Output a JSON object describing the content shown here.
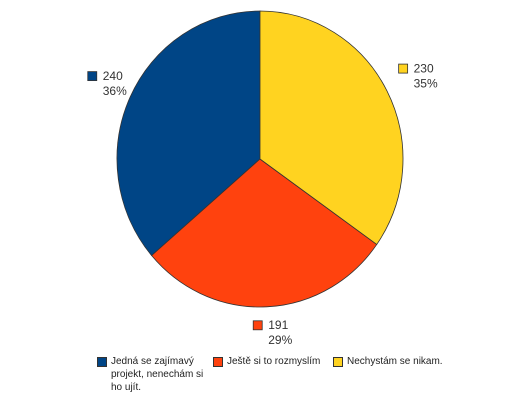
{
  "chart_data": {
    "type": "pie",
    "categories": [
      "Jedná se zajímavý projekt, nenechám si ho ujít.",
      "Ještě si to rozmyslím",
      "Nechystám se nikam."
    ],
    "values": [
      240,
      191,
      230
    ],
    "value_labels": [
      "36%",
      "29%",
      "35%"
    ],
    "colors": [
      "#004586",
      "#ff420e",
      "#ffd320"
    ],
    "legend": "bottom"
  }
}
